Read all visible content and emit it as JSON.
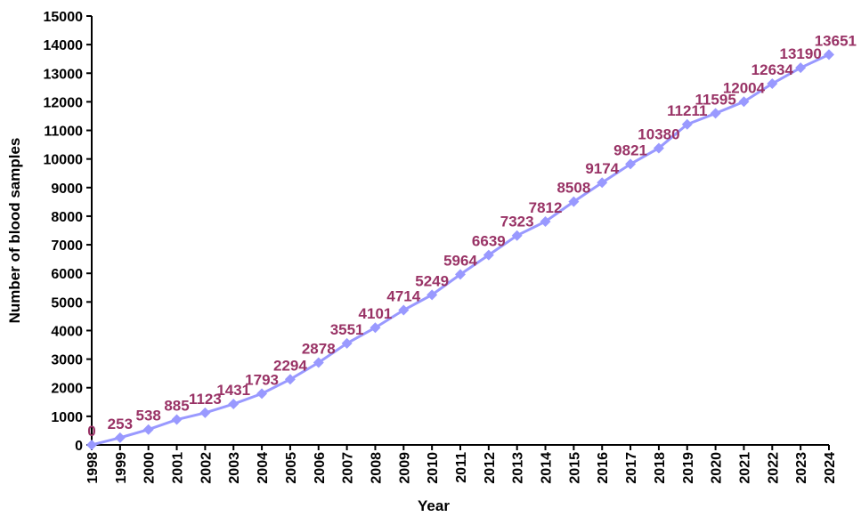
{
  "chart_data": {
    "type": "line",
    "title": "",
    "xlabel": "Year",
    "ylabel": "Number of blood samples",
    "ylim": [
      0,
      15000
    ],
    "ytick_step": 1000,
    "grid": false,
    "legend": "none",
    "categories": [
      "1998",
      "1999",
      "2000",
      "2001",
      "2002",
      "2003",
      "2004",
      "2005",
      "2006",
      "2007",
      "2008",
      "2009",
      "2010",
      "2011",
      "2012",
      "2013",
      "2014",
      "2015",
      "2016",
      "2017",
      "2018",
      "2019",
      "2020",
      "2021",
      "2022",
      "2023",
      "2024"
    ],
    "series": [
      {
        "values": [
          0,
          253,
          538,
          885,
          1123,
          1431,
          1793,
          2294,
          2878,
          3551,
          4101,
          4714,
          5249,
          5964,
          6639,
          7323,
          7812,
          8508,
          9174,
          9821,
          10380,
          11211,
          11595,
          12004,
          12634,
          13190,
          13651
        ],
        "line_color": "#9999ff",
        "marker": "diamond",
        "label_color": "#993366"
      }
    ]
  }
}
